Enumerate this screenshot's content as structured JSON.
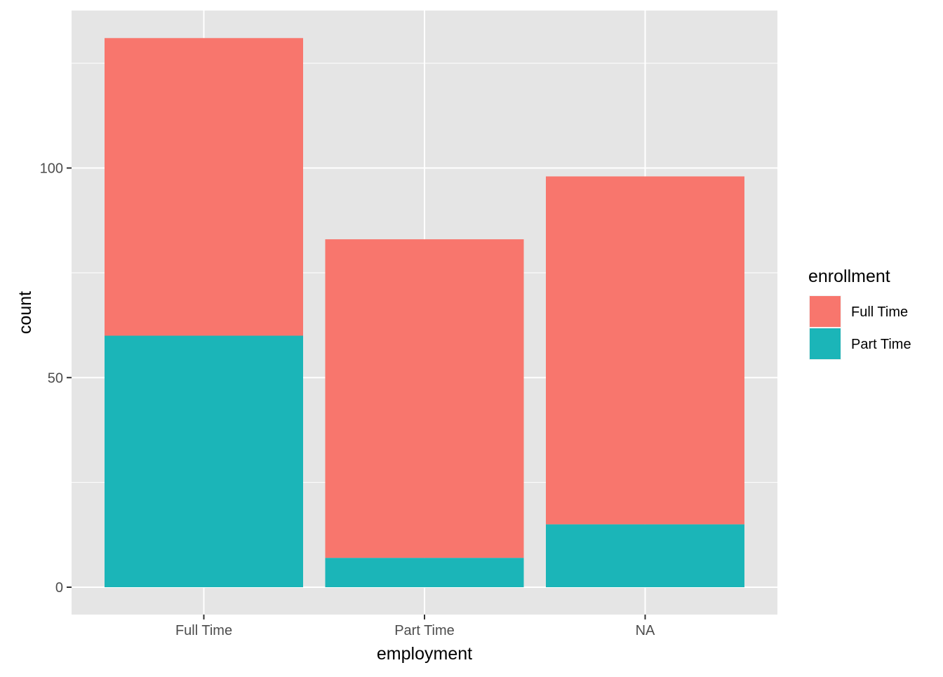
{
  "chart_data": {
    "type": "bar",
    "stacked": true,
    "title": "",
    "xlabel": "employment",
    "ylabel": "count",
    "categories": [
      "Full Time",
      "Part Time",
      "NA"
    ],
    "series": [
      {
        "name": "Full Time",
        "color": "#F8766D",
        "values": [
          71,
          76,
          83
        ]
      },
      {
        "name": "Part Time",
        "color": "#00BFC4",
        "values": [
          60,
          7,
          15
        ]
      }
    ],
    "ylim": [
      0,
      137
    ],
    "yticks": [
      0,
      50,
      100
    ],
    "grid": true,
    "legend": {
      "title": "enrollment",
      "placement": "right"
    },
    "colors": {
      "panel_background": "#E5E5E5",
      "grid_line": "#FFFFFF",
      "full_time": "#F8766D",
      "part_time": "#1BB5B8"
    }
  }
}
